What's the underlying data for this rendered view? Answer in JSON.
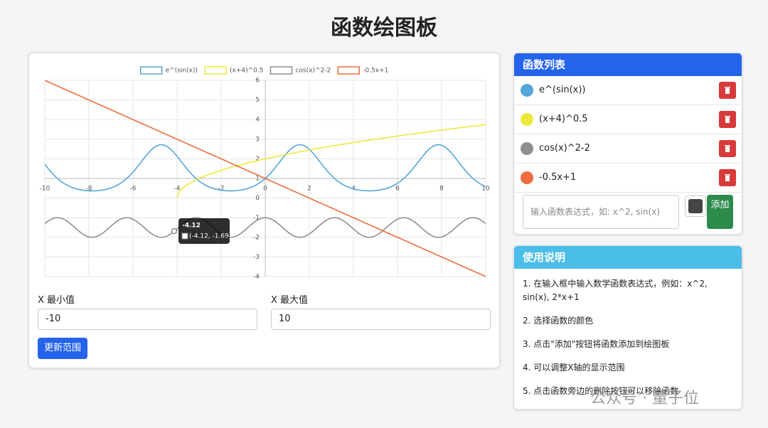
{
  "header": {
    "title": "函数绘图板"
  },
  "chart": {
    "type": "line",
    "functions": [
      {
        "name": "e^(sin(x))",
        "color": "#55a6da"
      },
      {
        "name": "(x+4)^0.5",
        "color": "#ede83e"
      },
      {
        "name": "cos(x)^2-2",
        "color": "#8f8f8f"
      },
      {
        "name": "-0.5x+1",
        "color": "#ee6c3e"
      }
    ],
    "xlim": [
      -10,
      10
    ],
    "xticks": [
      -10,
      -8,
      -6,
      -4,
      -2,
      0,
      2,
      4,
      6,
      8,
      10
    ],
    "ylim": [
      -4,
      6
    ],
    "yticks": [
      -4,
      -3,
      -2,
      -1,
      0,
      1,
      2,
      3,
      4,
      5,
      6
    ],
    "grid": true,
    "tooltip": {
      "title": "-4.12",
      "body": "(-4.12, -1.69)"
    }
  },
  "range": {
    "min_label": "X 最小值",
    "min_value": "-10",
    "max_label": "X 最大值",
    "max_value": "10",
    "button": "更新范围"
  },
  "function_list": {
    "title": "函数列表",
    "input_placeholder": "输入函数表达式，如: x^2, sin(x)",
    "add_button": "添加"
  },
  "instructions": {
    "title": "使用说明",
    "items": [
      "1. 在输入框中输入数学函数表达式，例如：x^2, sin(x), 2*x+1",
      "2. 选择函数的颜色",
      "3. 点击\"添加\"按钮将函数添加到绘图板",
      "4. 可以调整X轴的显示范围",
      "5. 点击函数旁边的删除按钮可以移除函数"
    ]
  },
  "watermark": "公众号 · 量子位"
}
